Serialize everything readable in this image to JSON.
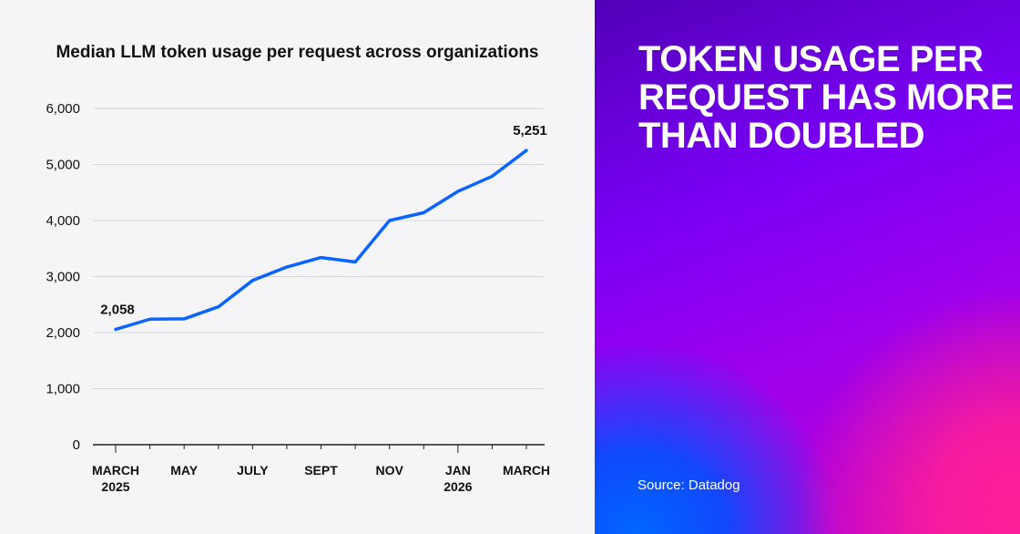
{
  "chart_data": {
    "type": "line",
    "title": "Median LLM token usage per request across organizations",
    "x": [
      "2025-03",
      "2025-04",
      "2025-05",
      "2025-06",
      "2025-07",
      "2025-08",
      "2025-09",
      "2025-10",
      "2025-11",
      "2025-12",
      "2026-01",
      "2026-02",
      "2026-03"
    ],
    "values": [
      2058,
      2240,
      2245,
      2460,
      2930,
      3170,
      3340,
      3260,
      4000,
      4140,
      4520,
      4790,
      5251
    ],
    "x_tick_labels": [
      {
        "index": 0,
        "line1": "MARCH",
        "line2": "2025"
      },
      {
        "index": 2,
        "line1": "MAY",
        "line2": ""
      },
      {
        "index": 4,
        "line1": "JULY",
        "line2": ""
      },
      {
        "index": 6,
        "line1": "SEPT",
        "line2": ""
      },
      {
        "index": 8,
        "line1": "NOV",
        "line2": ""
      },
      {
        "index": 10,
        "line1": "JAN",
        "line2": "2026"
      },
      {
        "index": 12,
        "line1": "MARCH",
        "line2": ""
      }
    ],
    "y_ticks": [
      0,
      1000,
      2000,
      3000,
      4000,
      5000,
      6000
    ],
    "y_tick_labels": [
      "0",
      "1,000",
      "2,000",
      "3,000",
      "4,000",
      "5,000",
      "6,000"
    ],
    "ylim": [
      0,
      6000
    ],
    "grid": "horizontal",
    "data_labels": [
      {
        "index": 0,
        "text": "2,058"
      },
      {
        "index": 12,
        "text": "5,251"
      }
    ],
    "line_color": "#0a64ff",
    "xlabel": "",
    "ylabel": ""
  },
  "panel": {
    "headline": "TOKEN USAGE PER REQUEST HAS MORE THAN DOUBLED",
    "source": "Source: Datadog"
  }
}
